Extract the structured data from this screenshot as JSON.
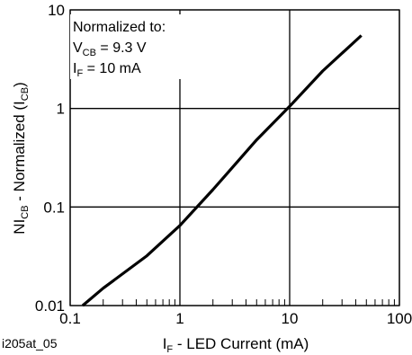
{
  "chart_data": {
    "type": "line",
    "xscale": "log",
    "yscale": "log",
    "xlim": [
      0.1,
      100
    ],
    "ylim": [
      0.01,
      10
    ],
    "grid": true,
    "xticks": [
      "0.1",
      "1",
      "10",
      "100"
    ],
    "yticks": [
      "0.01",
      "0.1",
      "1",
      "10"
    ],
    "xlabel": {
      "main": "I",
      "sub": "F",
      "rest": " - LED Current (mA)"
    },
    "ylabel": {
      "p1": "NI",
      "s1": "CB",
      "p2": " - Normalized (I",
      "s2": "CB",
      "p3": ")"
    },
    "annotation": {
      "line1": "Normalized to:",
      "line2": {
        "main": "V",
        "sub": "CB",
        "rest": " = 9.3 V"
      },
      "line3": {
        "main": "I",
        "sub": "F",
        "rest": " = 10 mA"
      }
    },
    "figure_id": "i205at_05",
    "series": [
      {
        "color": "#000000",
        "x": [
          0.13,
          0.2,
          0.5,
          1,
          2,
          5,
          10,
          20,
          45
        ],
        "y": [
          0.01,
          0.015,
          0.032,
          0.065,
          0.15,
          0.48,
          1.05,
          2.4,
          5.5
        ]
      }
    ]
  }
}
